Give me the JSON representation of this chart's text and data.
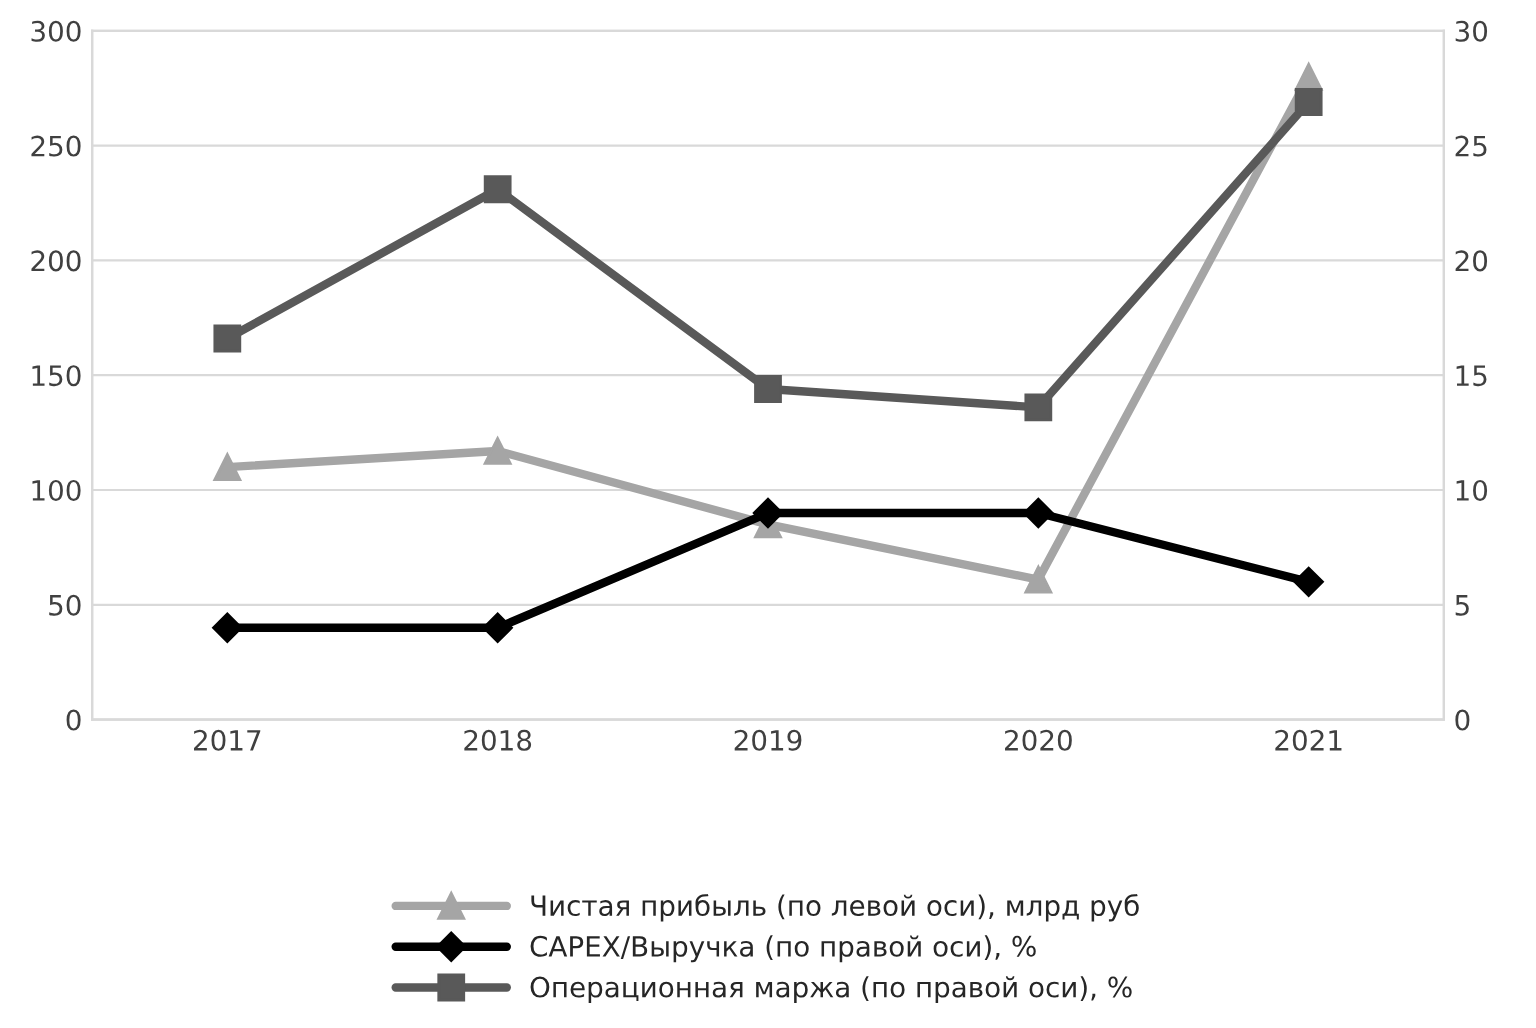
{
  "chart_data": {
    "type": "line",
    "categories": [
      "2017",
      "2018",
      "2019",
      "2020",
      "2021"
    ],
    "series": [
      {
        "name": "Чистая прибыль (по левой оси), млрд руб",
        "color": "#a5a5a5",
        "marker": "triangle",
        "values": [
          110,
          117,
          85,
          61,
          280
        ]
      },
      {
        "name": "CAPEX/Выручка (по правой оси), %",
        "color": "#000000",
        "marker": "diamond",
        "axis": "y2",
        "values": [
          4,
          4,
          9,
          9,
          6
        ]
      },
      {
        "name": "Операционная маржа (по правой оси), %",
        "color": "#595959",
        "marker": "square",
        "axis": "y2",
        "values": [
          16.6,
          23.1,
          14.4,
          13.6,
          26.9
        ]
      }
    ],
    "ylim": [
      0,
      300
    ],
    "yticks": [
      0,
      50,
      100,
      150,
      200,
      250,
      300
    ],
    "y2lim": [
      0,
      30
    ],
    "y2ticks": [
      0,
      5,
      10,
      15,
      20,
      25,
      30
    ],
    "grid": "y",
    "legend": "bottom",
    "line_style": "solid"
  }
}
